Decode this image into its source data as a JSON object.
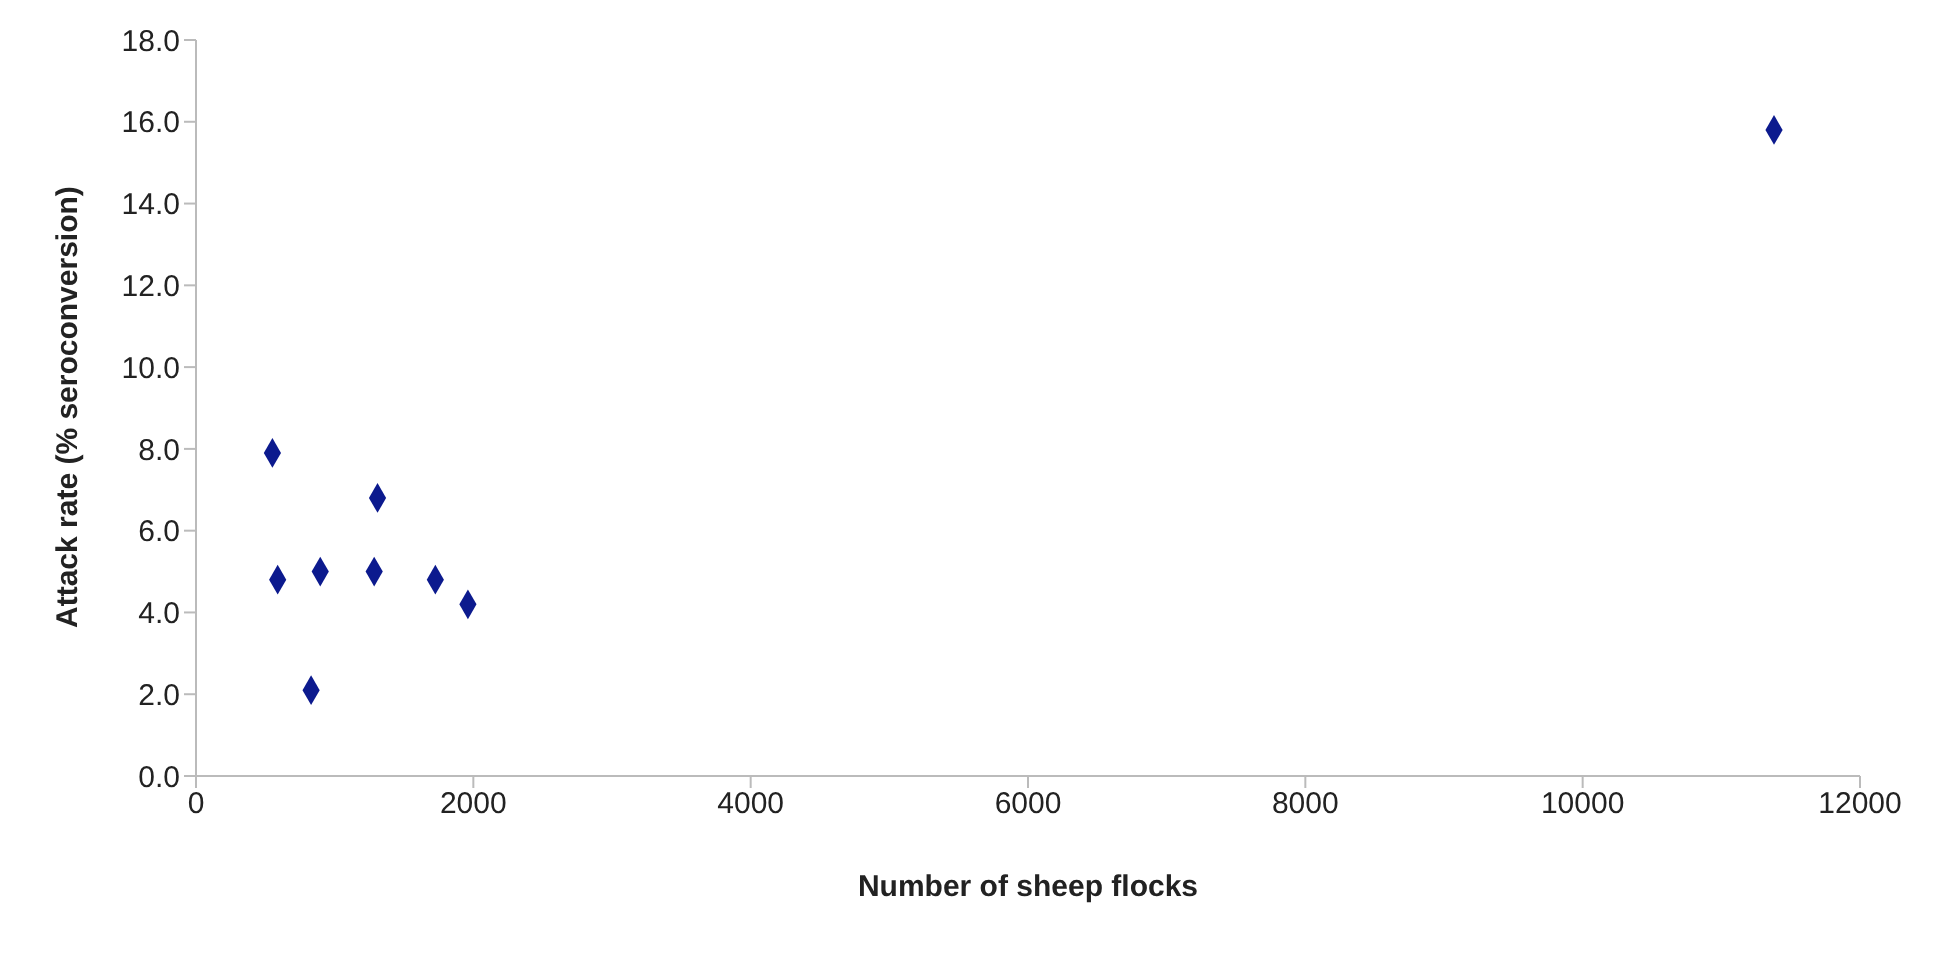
{
  "chart_data": {
    "type": "scatter",
    "xlabel": "Number of sheep flocks",
    "ylabel": "Attack rate (% seroconversion)",
    "x": [
      551,
      589,
      896,
      830,
      1285,
      1309,
      1726,
      1961,
      11380
    ],
    "series": [
      {
        "color": "#0c1a8e",
        "values": [
          7.9,
          4.8,
          5.0,
          2.1,
          5.0,
          6.8,
          4.8,
          4.2,
          15.8
        ]
      }
    ],
    "xlim": [
      0,
      12000
    ],
    "xticks": [
      0,
      2000,
      4000,
      6000,
      8000,
      10000,
      12000
    ],
    "ylim": [
      0,
      18
    ],
    "yticks": [
      {
        "value": 0,
        "label": "0.0"
      },
      {
        "value": 2,
        "label": "2.0"
      },
      {
        "value": 4,
        "label": "4.0"
      },
      {
        "value": 6,
        "label": "6.0"
      },
      {
        "value": 8,
        "label": "8.0"
      },
      {
        "value": 10,
        "label": "10.0"
      },
      {
        "value": 12,
        "label": "12.0"
      },
      {
        "value": 14,
        "label": "14.0"
      },
      {
        "value": 16,
        "label": "16.0"
      },
      {
        "value": 18,
        "label": "18.0"
      }
    ],
    "grid": false,
    "marker": "diamond",
    "legend": false
  }
}
